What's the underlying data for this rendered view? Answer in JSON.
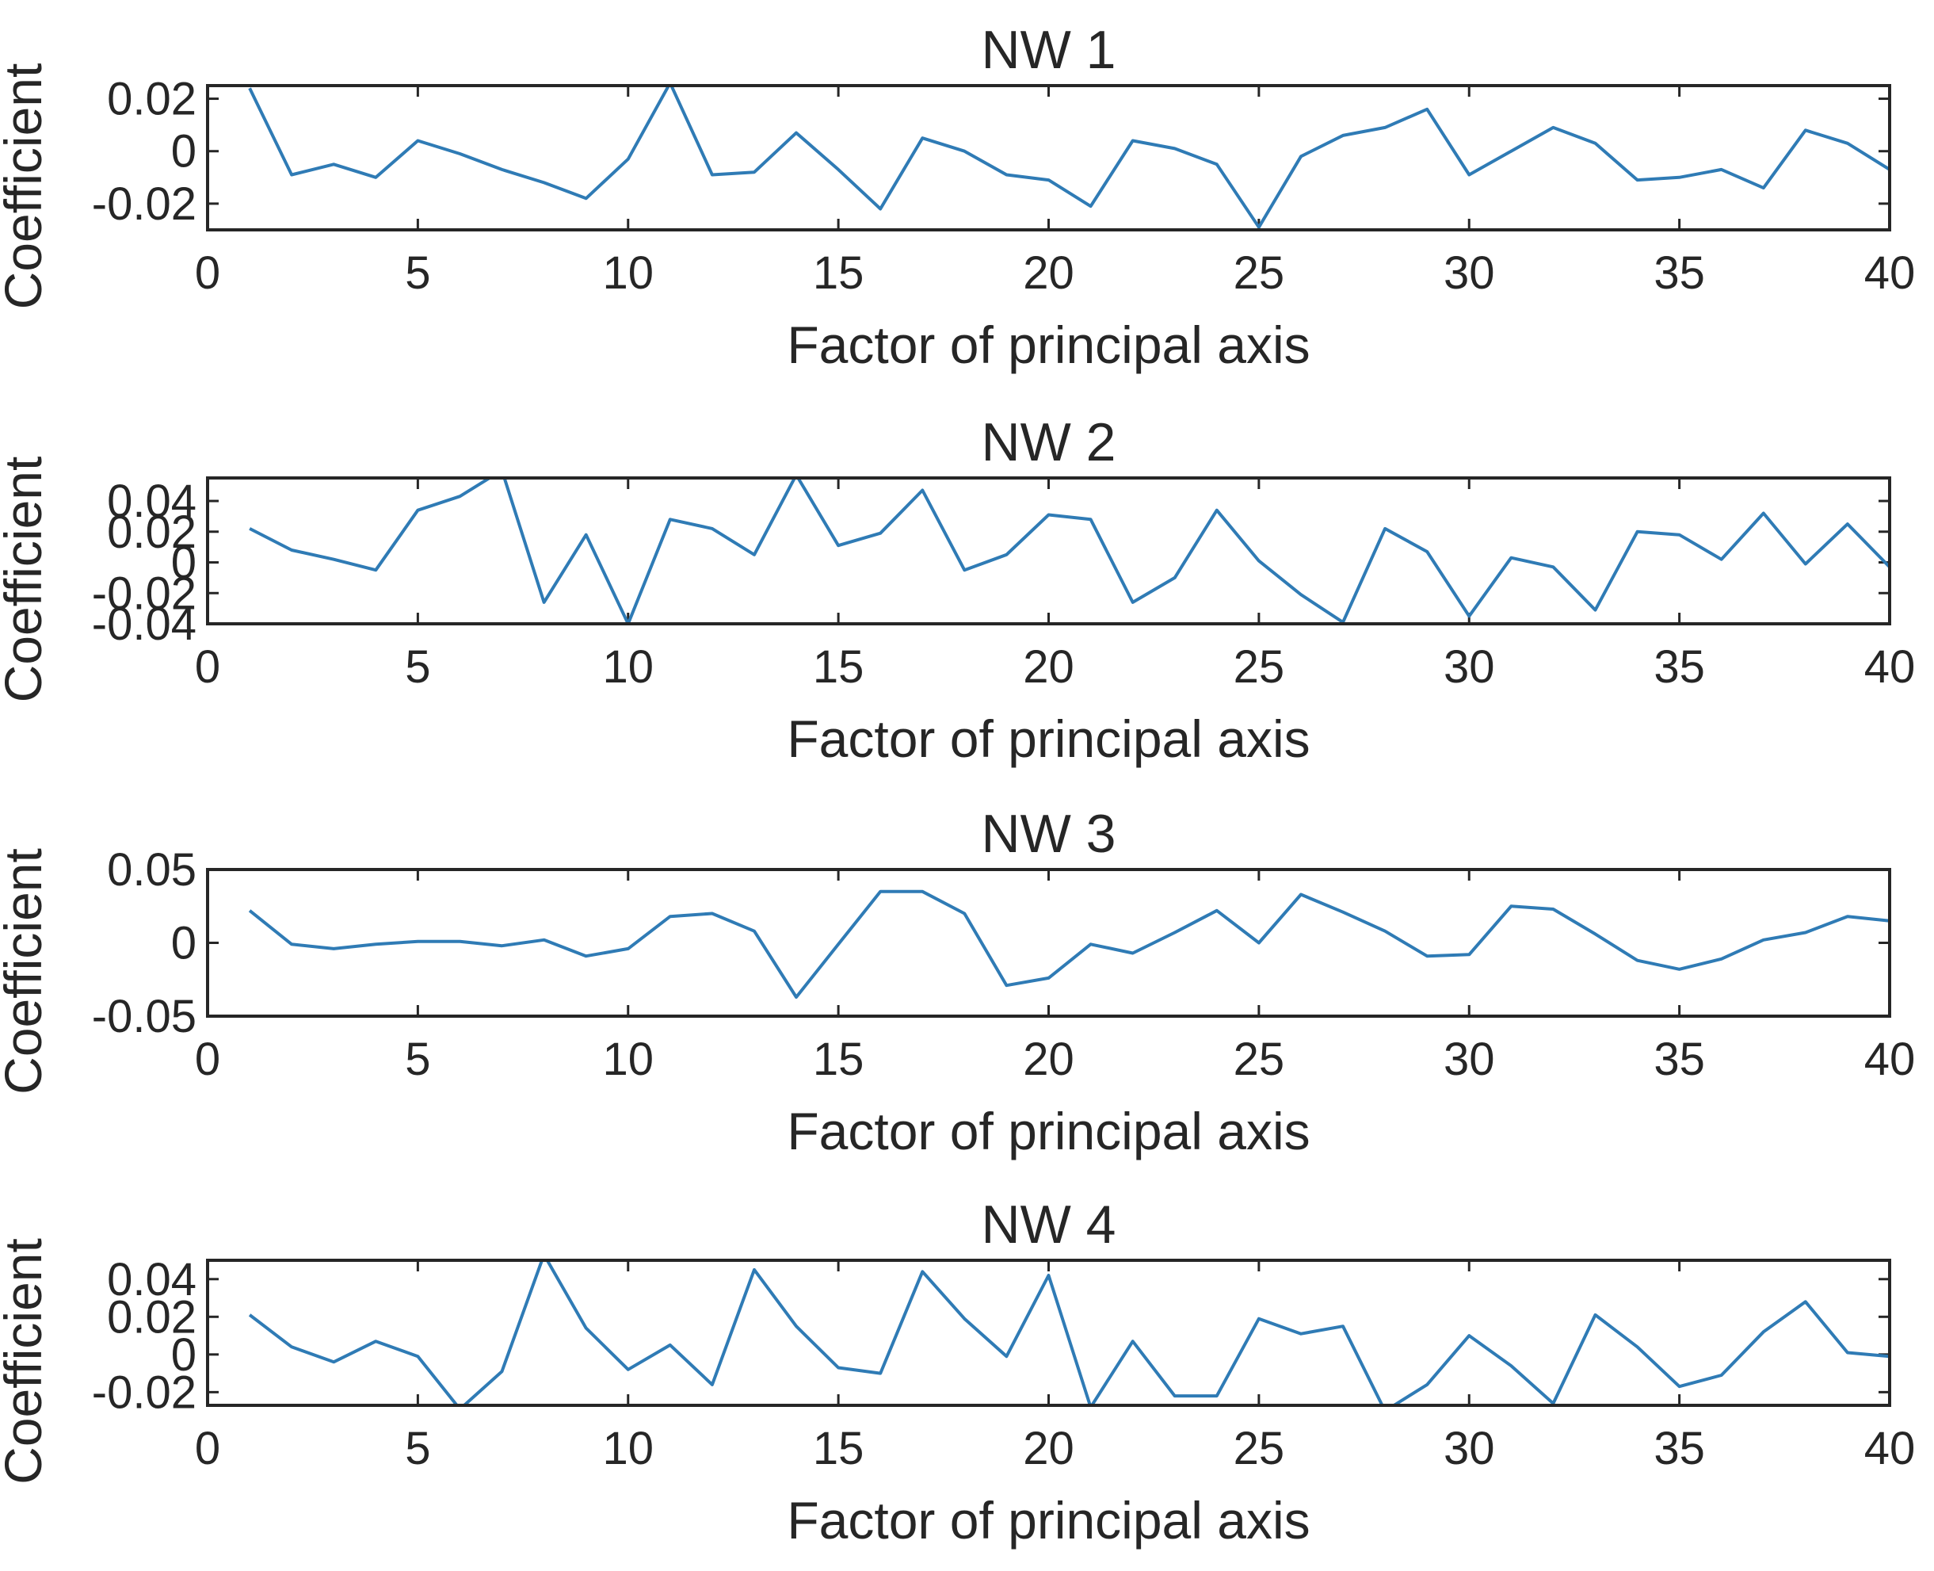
{
  "figure": {
    "background": "#ffffff"
  },
  "chart_data": [
    {
      "type": "line",
      "title": "NW 1",
      "xlabel": "Factor of principal axis",
      "ylabel": "Coefficient",
      "xlim": [
        0,
        40
      ],
      "ylim": [
        -0.03,
        0.025
      ],
      "xticks": [
        0,
        5,
        10,
        15,
        20,
        25,
        30,
        35,
        40
      ],
      "xtick_labels": [
        "0",
        "5",
        "10",
        "15",
        "20",
        "25",
        "30",
        "35",
        "40"
      ],
      "yticks": [
        0.02,
        0,
        -0.02
      ],
      "ytick_labels": [
        "0.02",
        "0",
        "-0.02"
      ],
      "color": "#2f7bb5",
      "series": [
        {
          "name": "NW 1",
          "x": [
            1,
            2,
            3,
            4,
            5,
            6,
            7,
            8,
            9,
            10,
            11,
            12,
            13,
            14,
            15,
            16,
            17,
            18,
            19,
            20,
            21,
            22,
            23,
            24,
            25,
            26,
            27,
            28,
            29,
            30,
            31,
            32,
            33,
            34,
            35,
            36,
            37,
            38,
            39,
            40
          ],
          "values": [
            0.024,
            -0.009,
            -0.005,
            -0.01,
            0.004,
            -0.001,
            -0.007,
            -0.012,
            -0.018,
            -0.003,
            0.026,
            -0.009,
            -0.008,
            0.007,
            -0.007,
            -0.022,
            0.005,
            0.0,
            -0.009,
            -0.011,
            -0.021,
            0.004,
            0.001,
            -0.005,
            -0.029,
            -0.002,
            0.006,
            0.009,
            0.016,
            -0.009,
            0.0,
            0.009,
            0.003,
            -0.011,
            -0.01,
            -0.007,
            -0.014,
            0.008,
            0.003,
            -0.007
          ]
        }
      ]
    },
    {
      "type": "line",
      "title": "NW 2",
      "xlabel": "Factor of principal axis",
      "ylabel": "Coefficient",
      "xlim": [
        0,
        40
      ],
      "ylim": [
        -0.04,
        0.055
      ],
      "xticks": [
        0,
        5,
        10,
        15,
        20,
        25,
        30,
        35,
        40
      ],
      "xtick_labels": [
        "0",
        "5",
        "10",
        "15",
        "20",
        "25",
        "30",
        "35",
        "40"
      ],
      "yticks": [
        0.04,
        0.02,
        0,
        -0.02,
        -0.04
      ],
      "ytick_labels": [
        "0.04",
        "0.02",
        "0",
        "-0.02",
        "-0.04"
      ],
      "color": "#2f7bb5",
      "series": [
        {
          "name": "NW 2",
          "x": [
            1,
            2,
            3,
            4,
            5,
            6,
            7,
            8,
            9,
            10,
            11,
            12,
            13,
            14,
            15,
            16,
            17,
            18,
            19,
            20,
            21,
            22,
            23,
            24,
            25,
            26,
            27,
            28,
            29,
            30,
            31,
            32,
            33,
            34,
            35,
            36,
            37,
            38,
            39,
            40
          ],
          "values": [
            0.022,
            0.008,
            0.002,
            -0.005,
            0.034,
            0.043,
            0.06,
            -0.026,
            0.018,
            -0.04,
            0.028,
            0.022,
            0.005,
            0.057,
            0.011,
            0.019,
            0.047,
            -0.005,
            0.005,
            0.031,
            0.028,
            -0.026,
            -0.01,
            0.034,
            0.001,
            -0.021,
            -0.039,
            0.022,
            0.007,
            -0.035,
            0.003,
            -0.003,
            -0.031,
            0.02,
            0.018,
            0.002,
            0.032,
            -0.001,
            0.025,
            -0.003
          ]
        }
      ]
    },
    {
      "type": "line",
      "title": "NW 3",
      "xlabel": "Factor of principal axis",
      "ylabel": "Coefficient",
      "xlim": [
        0,
        40
      ],
      "ylim": [
        -0.05,
        0.05
      ],
      "xticks": [
        0,
        5,
        10,
        15,
        20,
        25,
        30,
        35,
        40
      ],
      "xtick_labels": [
        "0",
        "5",
        "10",
        "15",
        "20",
        "25",
        "30",
        "35",
        "40"
      ],
      "yticks": [
        0.05,
        0,
        -0.05
      ],
      "ytick_labels": [
        "0.05",
        "0",
        "-0.05"
      ],
      "color": "#2f7bb5",
      "series": [
        {
          "name": "NW 3",
          "x": [
            1,
            2,
            3,
            4,
            5,
            6,
            7,
            8,
            9,
            10,
            11,
            12,
            13,
            14,
            15,
            16,
            17,
            18,
            19,
            20,
            21,
            22,
            23,
            24,
            25,
            26,
            27,
            28,
            29,
            30,
            31,
            32,
            33,
            34,
            35,
            36,
            37,
            38,
            39,
            40
          ],
          "values": [
            0.022,
            -0.001,
            -0.004,
            -0.001,
            0.001,
            0.001,
            -0.002,
            0.002,
            -0.009,
            -0.004,
            0.018,
            0.02,
            0.008,
            -0.037,
            -0.001,
            0.035,
            0.035,
            0.02,
            -0.029,
            -0.024,
            -0.001,
            -0.007,
            0.007,
            0.022,
            0.0,
            0.033,
            0.021,
            0.008,
            -0.009,
            -0.008,
            0.025,
            0.023,
            0.006,
            -0.012,
            -0.018,
            -0.011,
            0.002,
            0.007,
            0.018,
            0.015
          ]
        }
      ]
    },
    {
      "type": "line",
      "title": "NW 4",
      "xlabel": "Factor of principal axis",
      "ylabel": "Coefficient",
      "xlim": [
        0,
        40
      ],
      "ylim": [
        -0.027,
        0.05
      ],
      "xticks": [
        0,
        5,
        10,
        15,
        20,
        25,
        30,
        35,
        40
      ],
      "xtick_labels": [
        "0",
        "5",
        "10",
        "15",
        "20",
        "25",
        "30",
        "35",
        "40"
      ],
      "yticks": [
        0.04,
        0.02,
        0,
        -0.02
      ],
      "ytick_labels": [
        "0.04",
        "0.02",
        "0",
        "-0.02"
      ],
      "color": "#2f7bb5",
      "series": [
        {
          "name": "NW 4",
          "x": [
            1,
            2,
            3,
            4,
            5,
            6,
            7,
            8,
            9,
            10,
            11,
            12,
            13,
            14,
            15,
            16,
            17,
            18,
            19,
            20,
            21,
            22,
            23,
            24,
            25,
            26,
            27,
            28,
            29,
            30,
            31,
            32,
            33,
            34,
            35,
            36,
            37,
            38,
            39,
            40
          ],
          "values": [
            0.021,
            0.004,
            -0.004,
            0.007,
            -0.001,
            -0.029,
            -0.009,
            0.053,
            0.014,
            -0.008,
            0.005,
            -0.016,
            0.045,
            0.015,
            -0.007,
            -0.01,
            0.044,
            0.019,
            -0.001,
            0.042,
            -0.028,
            0.007,
            -0.022,
            -0.022,
            0.019,
            0.011,
            0.015,
            -0.03,
            -0.016,
            0.01,
            -0.006,
            -0.026,
            0.021,
            0.004,
            -0.017,
            -0.011,
            0.012,
            0.028,
            0.001,
            -0.001
          ]
        }
      ]
    }
  ]
}
